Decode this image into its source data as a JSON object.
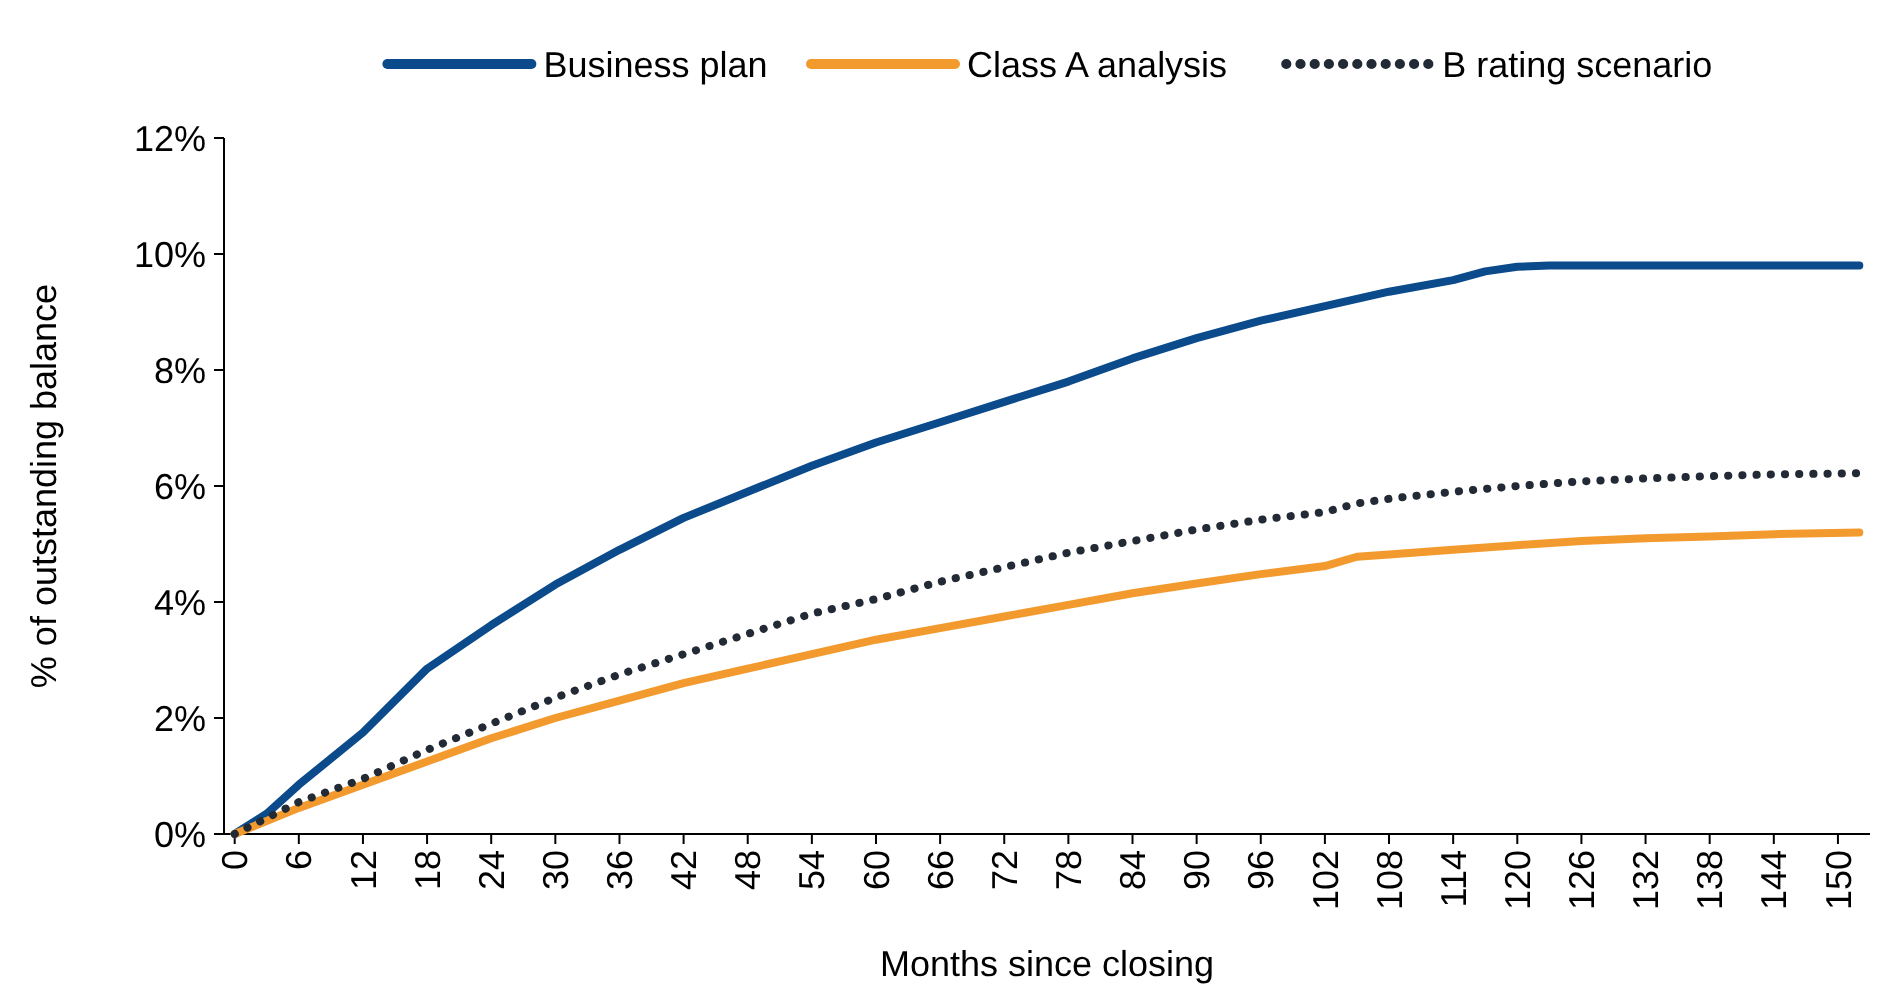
{
  "chart_data": {
    "type": "line",
    "xlabel": "Months since closing",
    "ylabel": "% of outstanding balance",
    "xlim": [
      -1,
      153
    ],
    "xticks": [
      0,
      6,
      12,
      18,
      24,
      30,
      36,
      42,
      48,
      54,
      60,
      66,
      72,
      78,
      84,
      90,
      96,
      102,
      108,
      114,
      120,
      126,
      132,
      138,
      144,
      150
    ],
    "ylim": [
      0,
      12
    ],
    "yticks": [
      {
        "value": 0,
        "label": "0%"
      },
      {
        "value": 2,
        "label": "2%"
      },
      {
        "value": 4,
        "label": "4%"
      },
      {
        "value": 6,
        "label": "6%"
      },
      {
        "value": 8,
        "label": "8%"
      },
      {
        "value": 10,
        "label": "10%"
      },
      {
        "value": 12,
        "label": "12%"
      }
    ],
    "grid": false,
    "legend": "top",
    "marker": "none",
    "series": [
      {
        "name": "Business plan",
        "color": "#0b4a8b",
        "line_style": "solid",
        "x": [
          0,
          3,
          6,
          12,
          18,
          24,
          30,
          36,
          42,
          48,
          54,
          60,
          66,
          72,
          78,
          84,
          90,
          96,
          102,
          108,
          114,
          117,
          120,
          123,
          152
        ],
        "values": [
          0,
          0.35,
          0.85,
          1.75,
          2.85,
          3.6,
          4.3,
          4.9,
          5.45,
          5.9,
          6.35,
          6.75,
          7.1,
          7.45,
          7.8,
          8.2,
          8.55,
          8.85,
          9.1,
          9.35,
          9.55,
          9.7,
          9.78,
          9.8,
          9.8
        ]
      },
      {
        "name": "Class A analysis",
        "color": "#f39a2e",
        "line_style": "solid",
        "x": [
          0,
          6,
          12,
          18,
          24,
          30,
          36,
          42,
          48,
          54,
          60,
          66,
          72,
          78,
          84,
          90,
          96,
          102,
          105,
          108,
          114,
          120,
          126,
          132,
          138,
          144,
          152
        ],
        "values": [
          0,
          0.45,
          0.85,
          1.25,
          1.65,
          2.0,
          2.3,
          2.6,
          2.85,
          3.1,
          3.35,
          3.55,
          3.75,
          3.95,
          4.15,
          4.32,
          4.48,
          4.62,
          4.78,
          4.82,
          4.9,
          4.98,
          5.05,
          5.1,
          5.13,
          5.17,
          5.2
        ]
      },
      {
        "name": "B rating scenario",
        "color": "#222a35",
        "line_style": "dotted",
        "x": [
          0,
          6,
          12,
          18,
          24,
          30,
          36,
          42,
          48,
          54,
          60,
          66,
          72,
          78,
          84,
          90,
          96,
          102,
          105,
          108,
          114,
          120,
          126,
          132,
          138,
          144,
          152
        ],
        "values": [
          0,
          0.55,
          0.95,
          1.45,
          1.9,
          2.35,
          2.75,
          3.1,
          3.45,
          3.8,
          4.05,
          4.35,
          4.6,
          4.85,
          5.05,
          5.25,
          5.42,
          5.55,
          5.7,
          5.78,
          5.9,
          6.0,
          6.08,
          6.13,
          6.17,
          6.2,
          6.22
        ]
      }
    ]
  }
}
